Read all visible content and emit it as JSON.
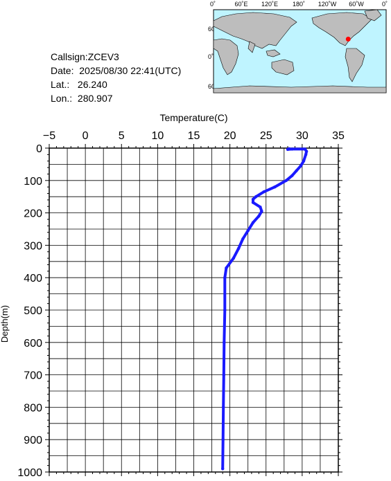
{
  "info": {
    "callsign": "Callsign:ZCEV3",
    "date": "Date:  2025/08/30 22:41(UTC)",
    "lat": "Lat.:   26.240",
    "lon": "Lon.:  280.907"
  },
  "map": {
    "top_labels": [
      "0˚",
      "60˚E",
      "120˚E",
      "180˚",
      "120˚W",
      "60˚W",
      "0˚"
    ],
    "side_labels": [
      "60˚N",
      "0˚",
      "60˚S"
    ],
    "colors": {
      "ocean": "#bff4ff",
      "land": "#bdbdbd",
      "marker": "#ff0000"
    },
    "marker": {
      "lat": 26.24,
      "lon": 280.907
    }
  },
  "chart_data": {
    "type": "line",
    "xlabel": "Temperature(C)",
    "ylabel": "Depth(m)",
    "xlim": [
      -5,
      35
    ],
    "ylim": [
      1000,
      0
    ],
    "x_ticks": [
      -5,
      0,
      5,
      10,
      15,
      20,
      25,
      30,
      35
    ],
    "y_ticks": [
      0,
      100,
      200,
      300,
      400,
      500,
      600,
      700,
      800,
      900,
      1000
    ],
    "grid": true,
    "series": [
      {
        "color": "#1a1aff",
        "points": [
          {
            "t": 28.2,
            "d": 2
          },
          {
            "t": 28.0,
            "d": 4
          },
          {
            "t": 28.6,
            "d": 3
          },
          {
            "t": 30.4,
            "d": 3
          },
          {
            "t": 30.6,
            "d": 10
          },
          {
            "t": 30.5,
            "d": 20
          },
          {
            "t": 30.2,
            "d": 40
          },
          {
            "t": 29.8,
            "d": 55
          },
          {
            "t": 29.2,
            "d": 70
          },
          {
            "t": 28.6,
            "d": 85
          },
          {
            "t": 27.8,
            "d": 100
          },
          {
            "t": 26.2,
            "d": 120
          },
          {
            "t": 24.7,
            "d": 135
          },
          {
            "t": 23.6,
            "d": 150
          },
          {
            "t": 23.2,
            "d": 158
          },
          {
            "t": 23.2,
            "d": 168
          },
          {
            "t": 24.2,
            "d": 182
          },
          {
            "t": 24.4,
            "d": 195
          },
          {
            "t": 24.0,
            "d": 210
          },
          {
            "t": 23.2,
            "d": 230
          },
          {
            "t": 22.5,
            "d": 255
          },
          {
            "t": 21.8,
            "d": 280
          },
          {
            "t": 21.2,
            "d": 310
          },
          {
            "t": 20.5,
            "d": 340
          },
          {
            "t": 19.5,
            "d": 370
          },
          {
            "t": 19.3,
            "d": 400
          },
          {
            "t": 19.3,
            "d": 500
          },
          {
            "t": 19.2,
            "d": 600
          },
          {
            "t": 19.15,
            "d": 700
          },
          {
            "t": 19.1,
            "d": 800
          },
          {
            "t": 19.05,
            "d": 900
          },
          {
            "t": 19.0,
            "d": 990
          }
        ]
      }
    ]
  }
}
